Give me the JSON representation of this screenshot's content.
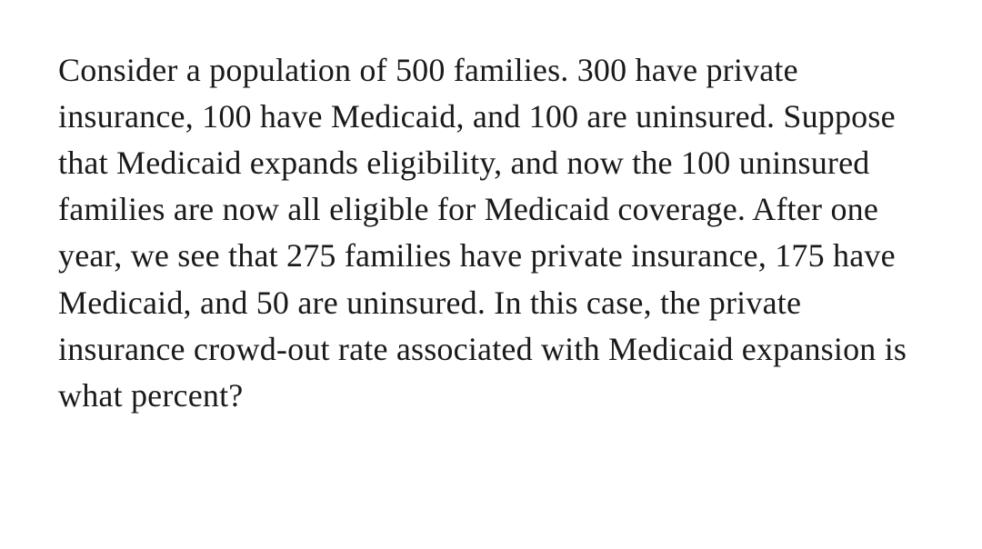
{
  "question": {
    "text": "Consider a population of 500 families. 300 have private insurance, 100 have Medicaid, and 100 are uninsured. Suppose that Medicaid expands eligibility, and now the 100 uninsured families are now all eligible for Medicaid coverage. After one year, we see that 275 families have private insurance, 175 have Medicaid, and 50 are uninsured. In this case, the private insurance crowd-out rate associated with Medicaid expansion is what percent?",
    "font_size": 36,
    "font_family": "Georgia, serif",
    "text_color": "#1a1a1a",
    "background_color": "#ffffff",
    "line_height": 1.42
  }
}
